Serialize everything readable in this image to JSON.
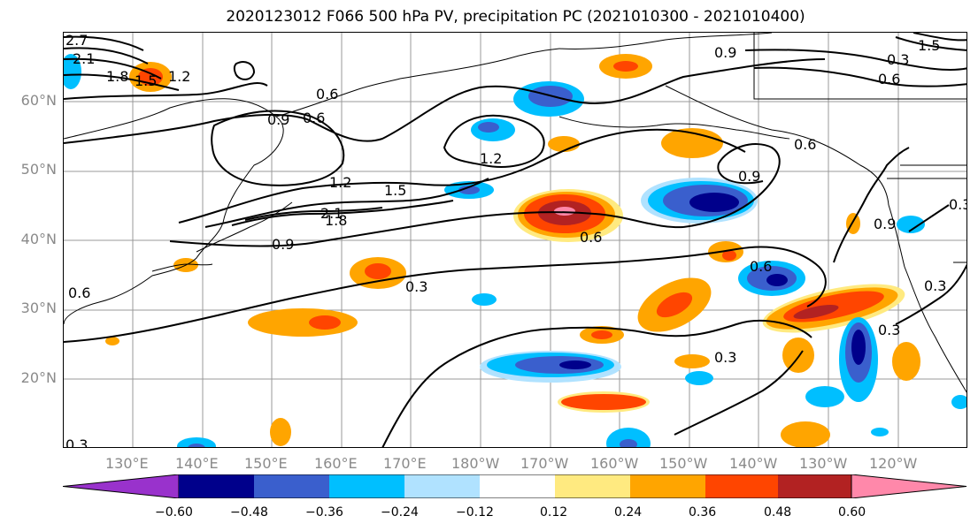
{
  "title": "2020123012 F066 500 hPa PV, precipitation PC (2021010300 - 2021010400)",
  "lat_labels": [
    "60°N",
    "50°N",
    "40°N",
    "30°N",
    "20°N"
  ],
  "lon_labels": [
    "130°E",
    "140°E",
    "150°E",
    "160°E",
    "170°E",
    "180°W",
    "170°W",
    "160°W",
    "150°W",
    "140°W",
    "130°W",
    "120°W"
  ],
  "colorbar": {
    "colors": [
      "#9932cc",
      "#00008b",
      "#3a5fcd",
      "#00bfff",
      "#b0e2ff",
      "#ffffff",
      "#ffea80",
      "#ffa500",
      "#ff4500",
      "#b22222",
      "#ff88aa"
    ],
    "ticks": [
      "−0.60",
      "−0.48",
      "−0.36",
      "−0.24",
      "−0.12",
      "0.12",
      "0.24",
      "0.36",
      "0.48",
      "0.60"
    ]
  },
  "contour_labels": [
    "2.7",
    "2.1",
    "1.8",
    "1.5",
    "1.2",
    "0.9",
    "0.6",
    "0.6",
    "1.2",
    "1.2",
    "1.5",
    "2.1",
    "1.8",
    "0.9",
    "0.6",
    "0.3",
    "0.6",
    "0.3",
    "0.3",
    "0.9",
    "0.6",
    "1.5",
    "0.9",
    "0.6",
    "0.6",
    "0.3",
    "0.3",
    "0.3",
    "0.9",
    "0.3"
  ],
  "map": {
    "region": "North Pacific",
    "lat_range": [
      10,
      70
    ],
    "lon_range": [
      120,
      250
    ],
    "colormap": "purple-blue-white-orange-red-pink"
  }
}
